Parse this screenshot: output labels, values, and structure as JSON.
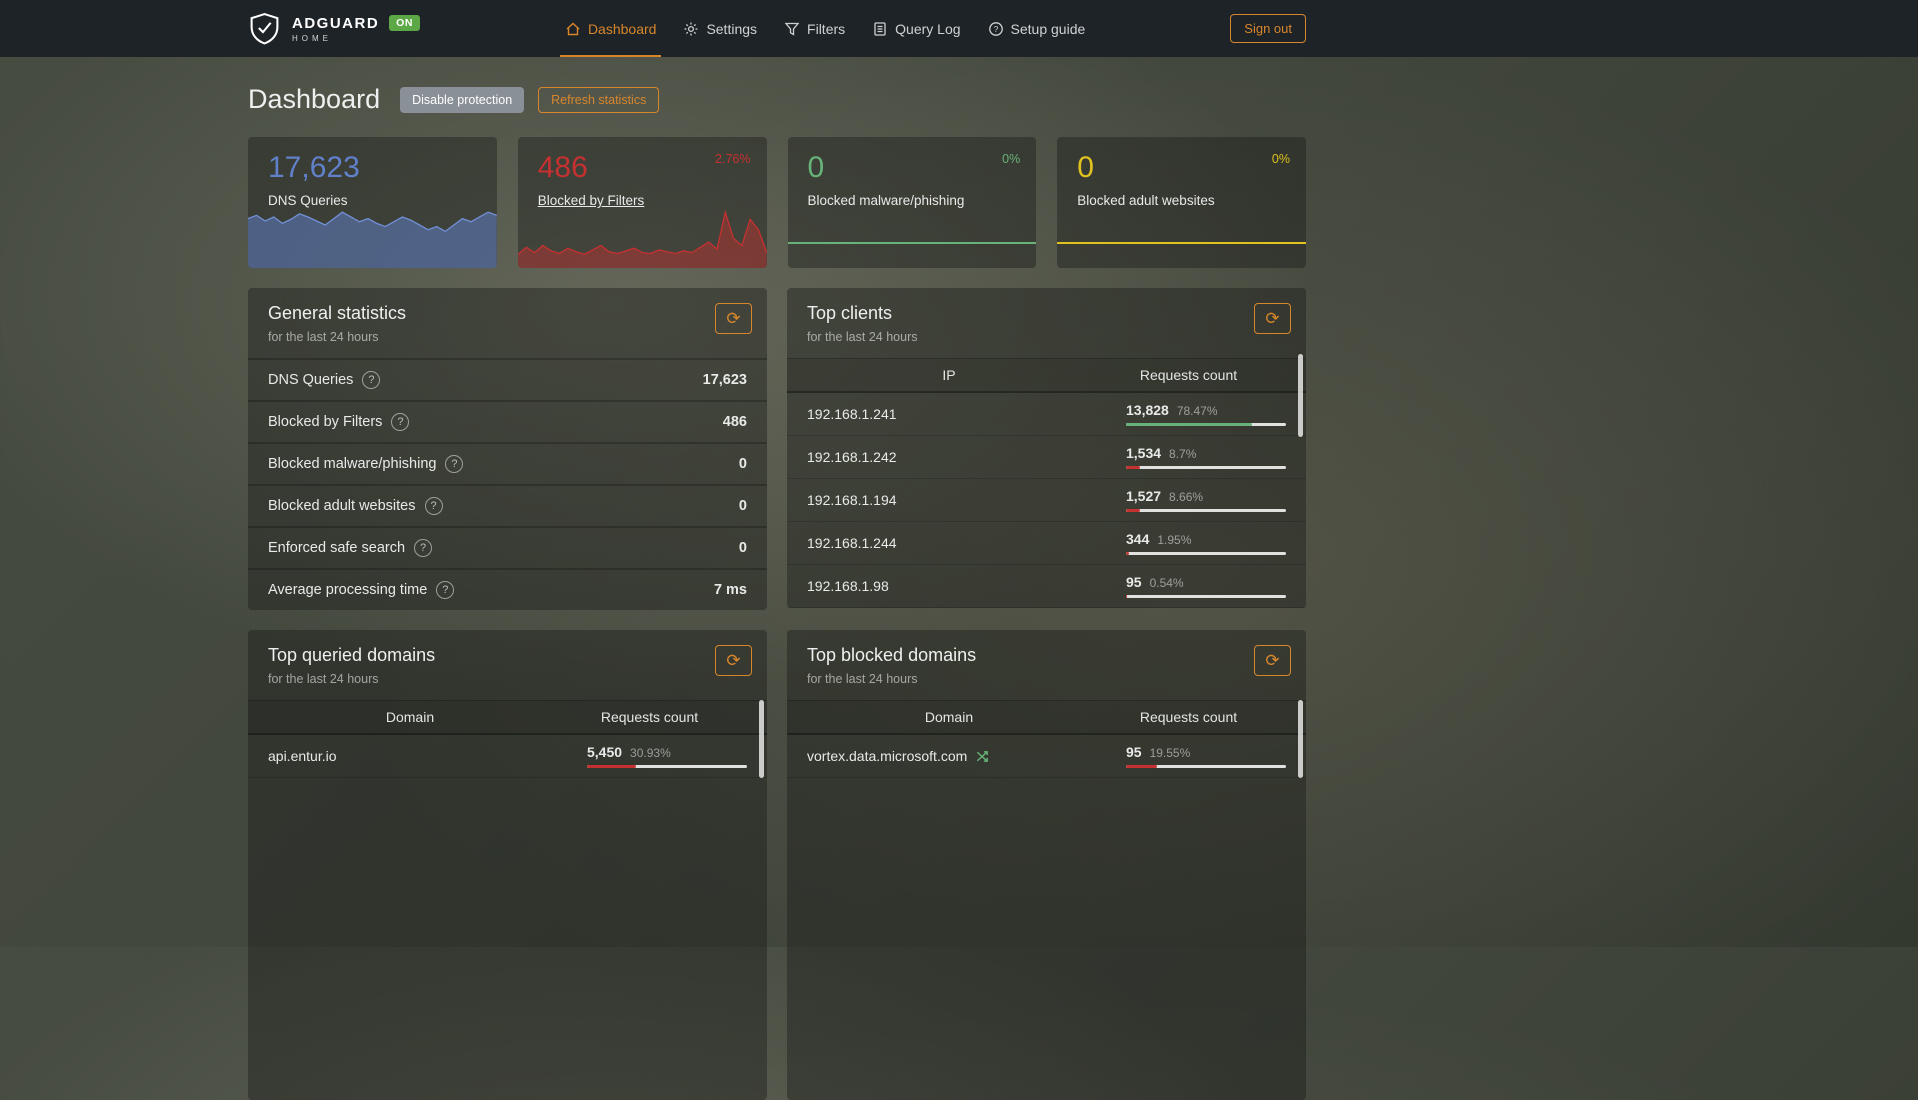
{
  "icons": {
    "refresh": "⟳",
    "help": "?"
  },
  "navbar": {
    "brand_title": "ADGUARD",
    "brand_subtitle": "HOME",
    "status_badge": "ON",
    "items": [
      {
        "label": "Dashboard"
      },
      {
        "label": "Settings"
      },
      {
        "label": "Filters"
      },
      {
        "label": "Query Log"
      },
      {
        "label": "Setup guide"
      }
    ],
    "signout_label": "Sign out"
  },
  "page": {
    "title": "Dashboard",
    "disable_protection_label": "Disable protection",
    "refresh_statistics_label": "Refresh statistics"
  },
  "stat_cards": [
    {
      "value": "17,623",
      "label": "DNS Queries",
      "color": "#6180ca",
      "percent": "",
      "spark": {
        "points": [
          58,
          62,
          55,
          60,
          52,
          57,
          64,
          60,
          55,
          50,
          58,
          66,
          60,
          54,
          58,
          52,
          48,
          54,
          60,
          56,
          50,
          44,
          48,
          42,
          50,
          58,
          54,
          60,
          66,
          62
        ],
        "stroke": "#7290d6",
        "fill": "rgba(95,125,197,0.55)"
      }
    },
    {
      "value": "486",
      "label": "Blocked by Filters",
      "color": "#c53131",
      "percent": "2.76%",
      "spark": {
        "points": [
          12,
          20,
          14,
          22,
          16,
          13,
          19,
          15,
          12,
          17,
          22,
          15,
          13,
          16,
          19,
          14,
          13,
          17,
          15,
          13,
          16,
          14,
          20,
          26,
          18,
          60,
          30,
          22,
          52,
          40,
          14
        ],
        "stroke": "#c53131",
        "fill": "rgba(197,49,49,0.45)"
      }
    },
    {
      "value": "0",
      "label": "Blocked malware/phishing",
      "color": "#67b279",
      "percent": "0%",
      "line_color": "#67b279"
    },
    {
      "value": "0",
      "label": "Blocked adult websites",
      "color": "#dfc11f",
      "percent": "0%",
      "line_color": "#dfc11f"
    }
  ],
  "general_statistics": {
    "title": "General statistics",
    "subtitle": "for the last 24 hours",
    "rows": [
      {
        "label": "DNS Queries",
        "value": "17,623"
      },
      {
        "label": "Blocked by Filters",
        "value": "486"
      },
      {
        "label": "Blocked malware/phishing",
        "value": "0"
      },
      {
        "label": "Blocked adult websites",
        "value": "0"
      },
      {
        "label": "Enforced safe search",
        "value": "0"
      },
      {
        "label": "Average processing time",
        "value": "7 ms"
      }
    ]
  },
  "top_clients": {
    "title": "Top clients",
    "subtitle": "for the last 24 hours",
    "columns": [
      "IP",
      "Requests count"
    ],
    "rows": [
      {
        "ip": "192.168.1.241",
        "count": "13,828",
        "percent": "78.47%",
        "bar": 78.47,
        "bar_color": "#67b279"
      },
      {
        "ip": "192.168.1.242",
        "count": "1,534",
        "percent": "8.7%",
        "bar": 8.7,
        "bar_color": "#c53131"
      },
      {
        "ip": "192.168.1.194",
        "count": "1,527",
        "percent": "8.66%",
        "bar": 8.66,
        "bar_color": "#c53131"
      },
      {
        "ip": "192.168.1.244",
        "count": "344",
        "percent": "1.95%",
        "bar": 1.95,
        "bar_color": "#c53131"
      },
      {
        "ip": "192.168.1.98",
        "count": "95",
        "percent": "0.54%",
        "bar": 0.54,
        "bar_color": "#c53131"
      }
    ]
  },
  "top_queried_domains": {
    "title": "Top queried domains",
    "subtitle": "for the last 24 hours",
    "columns": [
      "Domain",
      "Requests count"
    ],
    "rows": [
      {
        "domain": "api.entur.io",
        "count": "5,450",
        "percent": "30.93%",
        "bar": 30.93,
        "bar_color": "#c53131"
      }
    ]
  },
  "top_blocked_domains": {
    "title": "Top blocked domains",
    "subtitle": "for the last 24 hours",
    "columns": [
      "Domain",
      "Requests count"
    ],
    "rows": [
      {
        "domain": "vortex.data.microsoft.com",
        "count": "95",
        "percent": "19.55%",
        "bar": 19.55,
        "bar_color": "#c53131"
      }
    ]
  }
}
